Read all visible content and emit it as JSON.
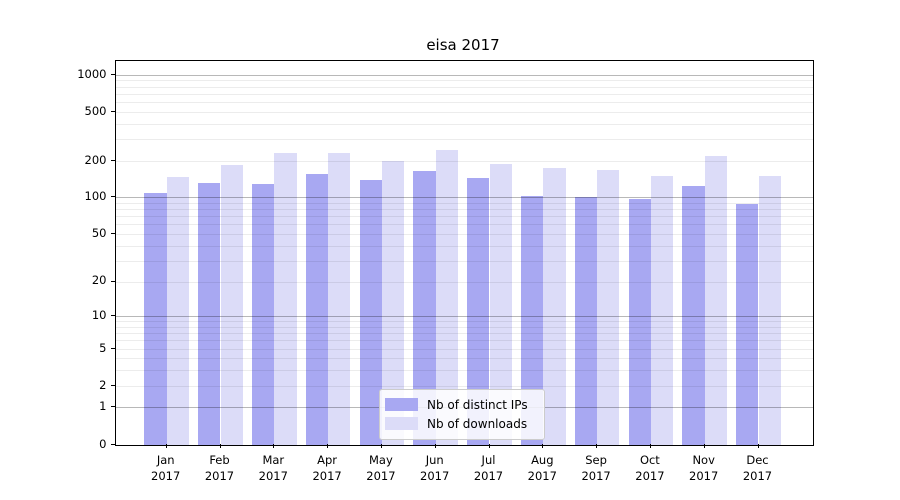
{
  "figure": {
    "background": "#ffffff"
  },
  "chart_data": {
    "type": "bar",
    "title": "eisa 2017",
    "categories": [
      "Jan",
      "Feb",
      "Mar",
      "Apr",
      "May",
      "Jun",
      "Jul",
      "Aug",
      "Sep",
      "Oct",
      "Nov",
      "Dec"
    ],
    "x_year": "2017",
    "y_scale": "log1p",
    "y_ticks": [
      0,
      1,
      2,
      5,
      10,
      20,
      50,
      100,
      200,
      500,
      1000
    ],
    "y_max": 1300,
    "grid": "on",
    "legend_position": "bottom-center",
    "series": [
      {
        "name": "Nb of distinct IPs",
        "color": "#a8a8f2",
        "values": [
          108,
          132,
          128,
          154,
          139,
          165,
          143,
          103,
          100,
          97,
          125,
          89
        ]
      },
      {
        "name": "Nb of downloads",
        "color": "#dcdcf8",
        "values": [
          147,
          183,
          232,
          230,
          199,
          243,
          186,
          173,
          167,
          149,
          218,
          149
        ]
      }
    ]
  },
  "legend": {
    "items": [
      {
        "label": "Nb of distinct IPs",
        "color": "#a8a8f2"
      },
      {
        "label": "Nb of downloads",
        "color": "#dcdcf8"
      }
    ]
  },
  "colors": {
    "major_grid": "rgba(0,0,0,0.28)",
    "minor_grid": "rgba(0,0,0,0.075)",
    "axis": "#000000"
  }
}
